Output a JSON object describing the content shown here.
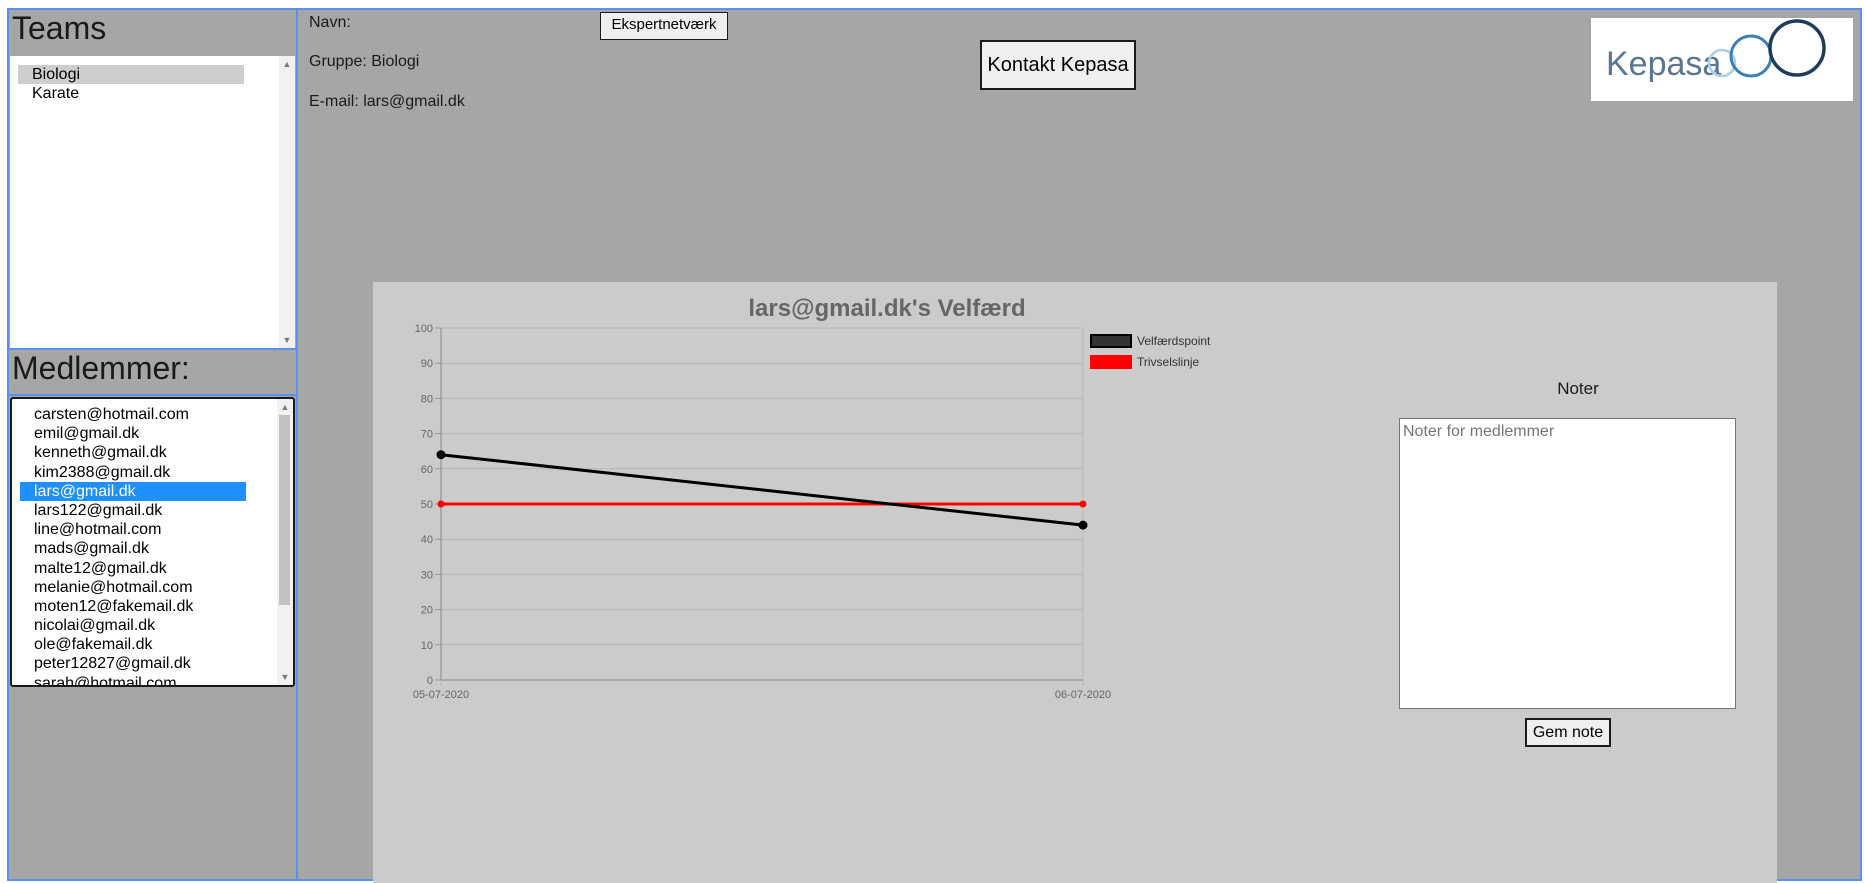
{
  "sidebar": {
    "teams_title": "Teams",
    "teams": [
      {
        "label": "Biologi",
        "selected": true
      },
      {
        "label": "Karate",
        "selected": false
      }
    ],
    "members_title": "Medlemmer:",
    "members": [
      "carsten@hotmail.com",
      "emil@gmail.dk",
      "kenneth@gmail.dk",
      "kim2388@gmail.dk",
      "lars@gmail.dk",
      "lars122@gmail.dk",
      "line@hotmail.com",
      "mads@gmail.dk",
      "malte12@gmail.dk",
      "melanie@hotmail.com",
      "moten12@fakemail.dk",
      "nicolai@gmail.dk",
      "ole@fakemail.dk",
      "peter12827@gmail.dk",
      "sarah@hotmail.com"
    ],
    "selected_member": "lars@gmail.dk"
  },
  "info": {
    "navn": "Navn:",
    "gruppe": "Gruppe: Biologi",
    "email": "E-mail: lars@gmail.dk"
  },
  "buttons": {
    "ekspert": "Ekspertnetværk",
    "kontakt": "Kontakt Kepasa",
    "gem_note": "Gem note"
  },
  "logo": {
    "text": "Kepasa"
  },
  "notes": {
    "title": "Noter",
    "placeholder": "Noter for medlemmer"
  },
  "colors": {
    "selection": "#1e90ff",
    "frame_border": "#5b8ff0",
    "series_velfaerd": "#000000",
    "series_trivsel": "#ff0000"
  },
  "chart_data": {
    "type": "line",
    "title": "lars@gmail.dk's Velfærd",
    "categories": [
      "05-07-2020",
      "06-07-2020"
    ],
    "series": [
      {
        "name": "Velfærdspoint",
        "values": [
          64,
          44
        ]
      },
      {
        "name": "Trivselslinje",
        "values": [
          50,
          50
        ]
      }
    ],
    "ylim": [
      0,
      100
    ],
    "yticks": [
      0,
      10,
      20,
      30,
      40,
      50,
      60,
      70,
      80,
      90,
      100
    ],
    "grid": true,
    "legend": "top-right"
  }
}
